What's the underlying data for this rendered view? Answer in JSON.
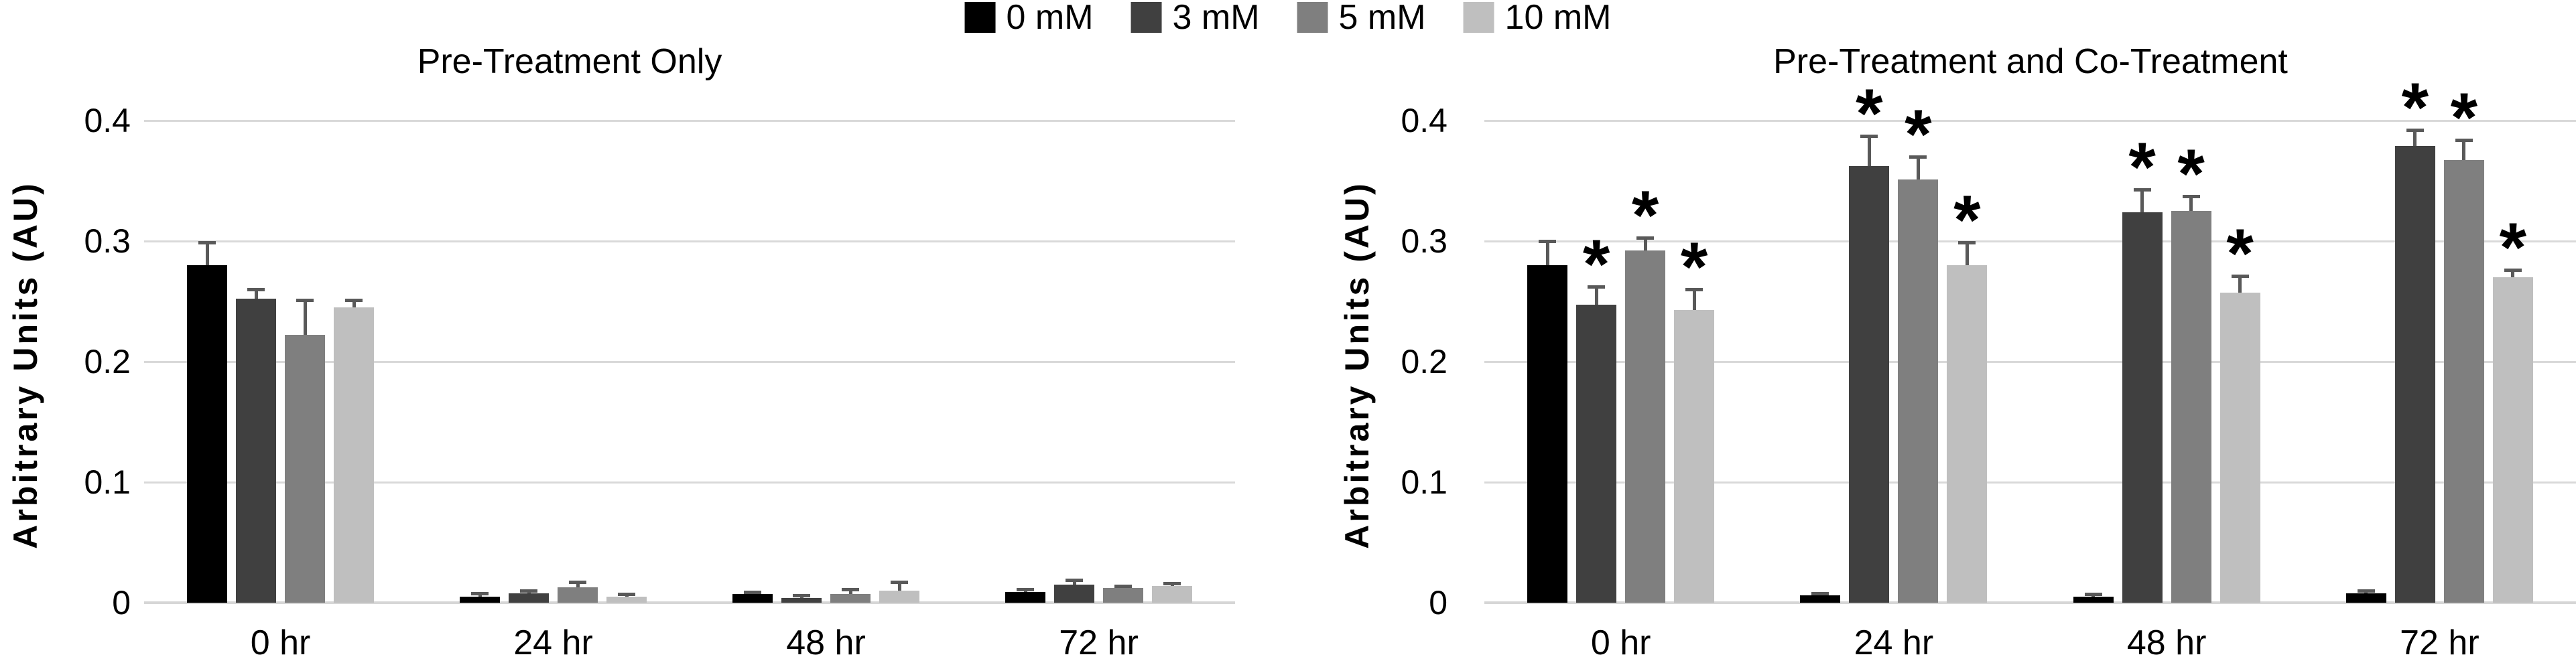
{
  "figure": {
    "background": "#ffffff"
  },
  "legend": {
    "position": "top-center",
    "items": [
      {
        "label": "0 mM",
        "color": "#000000"
      },
      {
        "label": "3 mM",
        "color": "#404040"
      },
      {
        "label": "5 mM",
        "color": "#7f7f7f"
      },
      {
        "label": "10 mM",
        "color": "#bfbfbf"
      }
    ]
  },
  "styles": {
    "gridline_color": "#d9d9d9",
    "error_bar_color": "#595959",
    "significance_marker": "*"
  },
  "chart_data": [
    {
      "type": "bar",
      "title": "Pre-Treatment Only",
      "ylabel": "Arbitrary Units (AU)",
      "xlabel": "",
      "categories": [
        "0 hr",
        "24 hr",
        "48 hr",
        "72 hr"
      ],
      "ylim": [
        0,
        0.4
      ],
      "yticks": [
        "0",
        "0.1",
        "0.2",
        "0.3",
        "0.4"
      ],
      "grid": true,
      "legend_position": "shared-top",
      "error_bars": true,
      "series": [
        {
          "name": "0 mM",
          "color": "#000000",
          "values": [
            0.28,
            0.005,
            0.007,
            0.009
          ],
          "errors": [
            0.019,
            0.003,
            0.002,
            0.002
          ],
          "significant": [
            false,
            false,
            false,
            false
          ]
        },
        {
          "name": "3 mM",
          "color": "#404040",
          "values": [
            0.252,
            0.008,
            0.004,
            0.015
          ],
          "errors": [
            0.008,
            0.002,
            0.002,
            0.004
          ],
          "significant": [
            false,
            false,
            false,
            false
          ]
        },
        {
          "name": "5 mM",
          "color": "#7f7f7f",
          "values": [
            0.222,
            0.013,
            0.007,
            0.012
          ],
          "errors": [
            0.029,
            0.004,
            0.004,
            0.002
          ],
          "significant": [
            false,
            false,
            false,
            false
          ]
        },
        {
          "name": "10 mM",
          "color": "#bfbfbf",
          "values": [
            0.245,
            0.005,
            0.01,
            0.014
          ],
          "errors": [
            0.006,
            0.002,
            0.007,
            0.002
          ],
          "significant": [
            false,
            false,
            false,
            false
          ]
        }
      ]
    },
    {
      "type": "bar",
      "title": "Pre-Treatment and Co-Treatment",
      "ylabel": "Arbitrary Units (AU)",
      "xlabel": "",
      "categories": [
        "0 hr",
        "24 hr",
        "48 hr",
        "72 hr"
      ],
      "ylim": [
        0,
        0.4
      ],
      "yticks": [
        "0",
        "0.1",
        "0.2",
        "0.3",
        "0.4"
      ],
      "grid": true,
      "legend_position": "shared-top",
      "error_bars": true,
      "series": [
        {
          "name": "0 mM",
          "color": "#000000",
          "values": [
            0.28,
            0.006,
            0.005,
            0.008
          ],
          "errors": [
            0.02,
            0.002,
            0.002,
            0.002
          ],
          "significant": [
            false,
            false,
            false,
            false
          ]
        },
        {
          "name": "3 mM",
          "color": "#404040",
          "values": [
            0.247,
            0.362,
            0.324,
            0.379
          ],
          "errors": [
            0.015,
            0.025,
            0.019,
            0.013
          ],
          "significant": [
            true,
            true,
            true,
            true
          ]
        },
        {
          "name": "5 mM",
          "color": "#7f7f7f",
          "values": [
            0.292,
            0.351,
            0.325,
            0.367
          ],
          "errors": [
            0.011,
            0.019,
            0.012,
            0.017
          ],
          "significant": [
            true,
            true,
            true,
            true
          ]
        },
        {
          "name": "10 mM",
          "color": "#bfbfbf",
          "values": [
            0.243,
            0.28,
            0.257,
            0.27
          ],
          "errors": [
            0.017,
            0.019,
            0.014,
            0.006
          ],
          "significant": [
            true,
            true,
            true,
            true
          ]
        }
      ]
    }
  ]
}
